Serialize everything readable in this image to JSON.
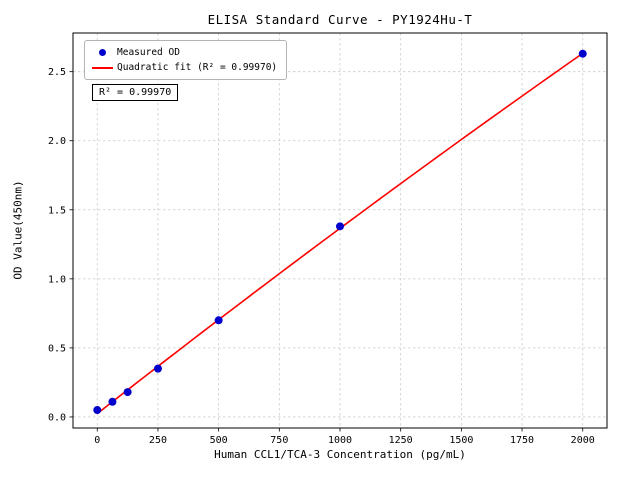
{
  "chart_data": {
    "type": "scatter",
    "title": "ELISA Standard Curve - PY1924Hu-T",
    "xlabel": "Human CCL1/TCA-3 Concentration (pg/mL)",
    "ylabel": "OD Value(450nm)",
    "x": [
      0,
      62.5,
      125,
      250,
      500,
      1000,
      2000
    ],
    "series": [
      {
        "name": "Measured OD",
        "values": [
          0.05,
          0.11,
          0.18,
          0.35,
          0.7,
          1.38,
          2.63
        ]
      }
    ],
    "fit": {
      "name": "Quadratic fit",
      "type": "quadratic",
      "r_squared": 0.9997
    },
    "xticks": [
      0,
      250,
      500,
      750,
      1000,
      1250,
      1500,
      1750,
      2000
    ],
    "yticks": [
      0.0,
      0.5,
      1.0,
      1.5,
      2.0,
      2.5
    ],
    "xlim": [
      -100,
      2100
    ],
    "ylim": [
      -0.08,
      2.78
    ],
    "grid": true,
    "legend": {
      "position": "upper-left",
      "entries": [
        {
          "label": "Measured OD",
          "marker": "circle",
          "color": "#0000cd"
        },
        {
          "label": "Quadratic fit (R² = 0.99970)",
          "marker": "line",
          "color": "#ff0000"
        }
      ]
    },
    "annotation": "R² = 0.99970",
    "colors": {
      "points": "#0000cd",
      "fit_line": "#ff0000",
      "grid": "#cccccc",
      "frame": "#000000"
    }
  }
}
